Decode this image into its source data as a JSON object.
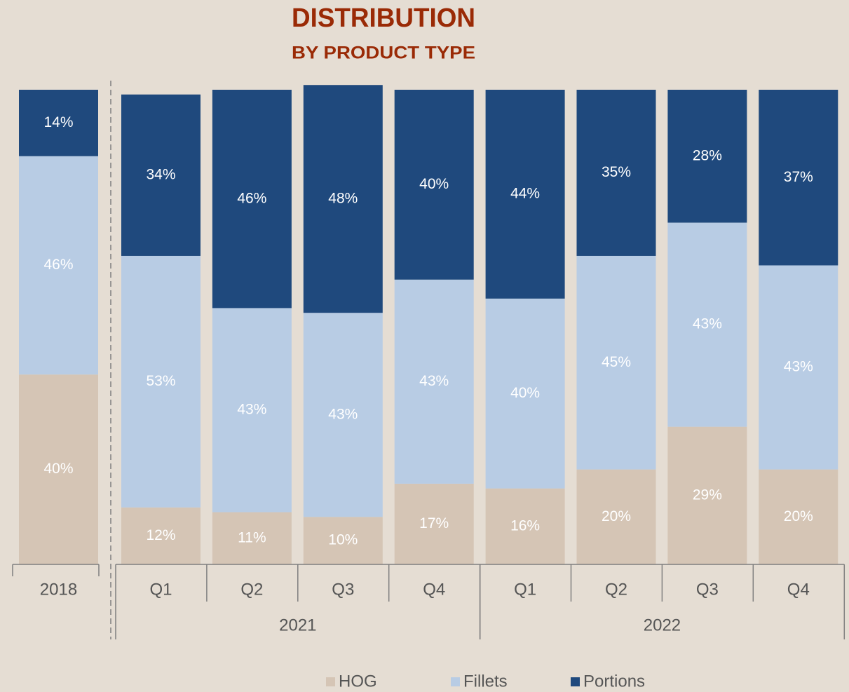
{
  "chart_data": {
    "type": "stacked_bar",
    "title": "DISTRIBUTION",
    "subtitle": "BY PRODUCT TYPE",
    "groups": [
      {
        "name": null,
        "categories": [
          "2018"
        ]
      },
      {
        "name": "2021",
        "categories": [
          "Q1",
          "Q2",
          "Q3",
          "Q4"
        ]
      },
      {
        "name": "2022",
        "categories": [
          "Q1",
          "Q2",
          "Q3",
          "Q4"
        ]
      }
    ],
    "ylim": [
      0,
      100
    ],
    "series": [
      {
        "name": "HOG",
        "color": "#d5c5b5",
        "values": [
          40,
          12,
          11,
          10,
          17,
          16,
          20,
          29,
          20
        ],
        "value_labels": [
          "40%",
          "12%",
          "11%",
          "10%",
          "17%",
          "16%",
          "20%",
          "29%",
          "20%"
        ]
      },
      {
        "name": "Fillets",
        "color": "#b8cce4",
        "values": [
          46,
          53,
          43,
          43,
          43,
          40,
          45,
          43,
          43
        ],
        "value_labels": [
          "46%",
          "53%",
          "43%",
          "43%",
          "43%",
          "40%",
          "45%",
          "43%",
          "43%"
        ]
      },
      {
        "name": "Portions",
        "color": "#1f497d",
        "values": [
          14,
          34,
          46,
          48,
          40,
          44,
          35,
          28,
          37
        ],
        "value_labels": [
          "14%",
          "34%",
          "46%",
          "48%",
          "40%",
          "44%",
          "35%",
          "28%",
          "37%"
        ]
      }
    ]
  }
}
